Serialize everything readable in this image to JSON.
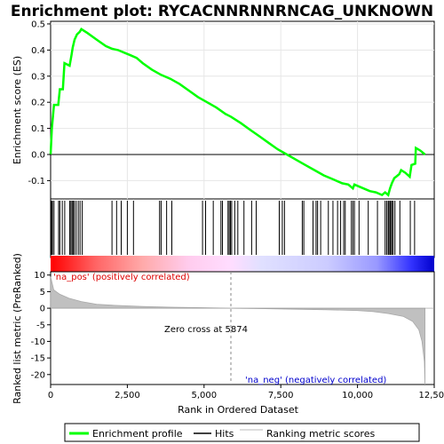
{
  "chart_data": {
    "type": "line",
    "title": "Enrichment plot: RYCACNNRNNRNCAG_UNKNOWN",
    "xlabel": "Rank in Ordered Dataset",
    "ylabel_top": "Enrichment score (ES)",
    "ylabel_bottom": "Ranked list metric (PreRanked)",
    "x_ticks": [
      "0",
      "2,500",
      "5,000",
      "7,500",
      "10,000",
      "12,500"
    ],
    "x_tick_values": [
      0,
      2500,
      5000,
      7500,
      10000,
      12500
    ],
    "xlim": [
      0,
      12500
    ],
    "es_ylim": [
      -0.17,
      0.51
    ],
    "es_y_ticks": [
      "0.5",
      "0.4",
      "0.3",
      "0.2",
      "0.1",
      "0.0",
      "-0.1"
    ],
    "es_y_tick_values": [
      0.5,
      0.4,
      0.3,
      0.2,
      0.1,
      0.0,
      -0.1
    ],
    "metric_ylim": [
      -23,
      11
    ],
    "metric_y_ticks": [
      "10",
      "5",
      "0",
      "-5",
      "-10",
      "-15",
      "-20"
    ],
    "metric_y_tick_values": [
      10,
      5,
      0,
      -5,
      -10,
      -15,
      -20
    ],
    "total_rank": 12200,
    "enrichment_profile": {
      "name": "Enrichment profile",
      "color": "#00ff00",
      "points": [
        [
          0,
          0.0
        ],
        [
          40,
          0.1
        ],
        [
          110,
          0.19
        ],
        [
          250,
          0.19
        ],
        [
          300,
          0.25
        ],
        [
          400,
          0.25
        ],
        [
          450,
          0.35
        ],
        [
          620,
          0.34
        ],
        [
          680,
          0.38
        ],
        [
          720,
          0.41
        ],
        [
          780,
          0.44
        ],
        [
          860,
          0.46
        ],
        [
          950,
          0.47
        ],
        [
          1000,
          0.48
        ],
        [
          1200,
          0.465
        ],
        [
          1500,
          0.44
        ],
        [
          1800,
          0.415
        ],
        [
          2000,
          0.405
        ],
        [
          2200,
          0.4
        ],
        [
          2400,
          0.39
        ],
        [
          2600,
          0.38
        ],
        [
          2800,
          0.37
        ],
        [
          3000,
          0.35
        ],
        [
          3300,
          0.325
        ],
        [
          3600,
          0.305
        ],
        [
          3900,
          0.29
        ],
        [
          4200,
          0.27
        ],
        [
          4500,
          0.245
        ],
        [
          4800,
          0.22
        ],
        [
          5100,
          0.2
        ],
        [
          5400,
          0.18
        ],
        [
          5700,
          0.155
        ],
        [
          5874,
          0.145
        ],
        [
          6200,
          0.12
        ],
        [
          6500,
          0.095
        ],
        [
          6800,
          0.07
        ],
        [
          7100,
          0.045
        ],
        [
          7400,
          0.02
        ],
        [
          7700,
          0.0
        ],
        [
          8000,
          -0.02
        ],
        [
          8300,
          -0.04
        ],
        [
          8600,
          -0.06
        ],
        [
          8900,
          -0.08
        ],
        [
          9200,
          -0.095
        ],
        [
          9500,
          -0.11
        ],
        [
          9700,
          -0.115
        ],
        [
          9850,
          -0.13
        ],
        [
          9900,
          -0.115
        ],
        [
          10100,
          -0.125
        ],
        [
          10400,
          -0.14
        ],
        [
          10600,
          -0.145
        ],
        [
          10800,
          -0.155
        ],
        [
          10900,
          -0.145
        ],
        [
          11000,
          -0.155
        ],
        [
          11060,
          -0.13
        ],
        [
          11120,
          -0.11
        ],
        [
          11200,
          -0.09
        ],
        [
          11260,
          -0.085
        ],
        [
          11360,
          -0.075
        ],
        [
          11420,
          -0.06
        ],
        [
          11560,
          -0.07
        ],
        [
          11700,
          -0.085
        ],
        [
          11760,
          -0.04
        ],
        [
          11880,
          -0.035
        ],
        [
          11900,
          0.025
        ],
        [
          12050,
          0.015
        ],
        [
          12200,
          0.0
        ]
      ]
    },
    "hits_label": "Hits",
    "hits": [
      30,
      60,
      110,
      260,
      300,
      380,
      460,
      620,
      660,
      700,
      730,
      770,
      830,
      900,
      960,
      1030,
      2000,
      2150,
      2300,
      2500,
      2700,
      3550,
      3600,
      3780,
      3950,
      4950,
      5050,
      5300,
      5550,
      5600,
      5780,
      5820,
      5860,
      5900,
      6000,
      6100,
      6300,
      6550,
      6700,
      7450,
      7550,
      7620,
      8200,
      8250,
      8550,
      8650,
      8700,
      8800,
      9050,
      9200,
      9350,
      9450,
      9550,
      9600,
      9800,
      9850,
      9900,
      10050,
      10350,
      10650,
      10900,
      10950,
      11000,
      11020,
      11060,
      11080,
      11120,
      11160,
      11220,
      11380,
      11720,
      11860
    ],
    "ranking_metric_label": "Ranking metric scores",
    "ranking_metric": [
      [
        0,
        9.5
      ],
      [
        100,
        5.5
      ],
      [
        300,
        4.2
      ],
      [
        600,
        3.0
      ],
      [
        1000,
        2.0
      ],
      [
        1500,
        1.2
      ],
      [
        2000,
        0.9
      ],
      [
        3000,
        0.5
      ],
      [
        4000,
        0.3
      ],
      [
        5000,
        0.15
      ],
      [
        5874,
        0.0
      ],
      [
        7000,
        -0.15
      ],
      [
        8000,
        -0.3
      ],
      [
        9000,
        -0.45
      ],
      [
        10000,
        -0.7
      ],
      [
        10500,
        -1.0
      ],
      [
        11000,
        -1.6
      ],
      [
        11500,
        -2.5
      ],
      [
        11800,
        -4.0
      ],
      [
        12000,
        -6.5
      ],
      [
        12100,
        -10.0
      ],
      [
        12180,
        -16.0
      ],
      [
        12200,
        -23.0
      ]
    ],
    "zero_cross_label": "Zero cross at 5874",
    "zero_cross": 5874,
    "pos_label": "'na_pos' (positively correlated)",
    "neg_label": "'na_neg' (negatively correlated)",
    "pos_color": "#dd0000",
    "neg_color": "#0000cc",
    "legend": [
      "Enrichment profile",
      "Hits",
      "Ranking metric scores"
    ]
  }
}
